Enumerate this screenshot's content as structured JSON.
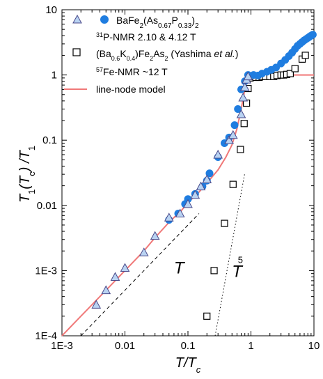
{
  "chart_data": {
    "type": "scatter",
    "xscale": "log",
    "yscale": "log",
    "xlim": [
      0.001,
      10
    ],
    "ylim": [
      0.0001,
      10
    ],
    "xticks": [
      "1E-3",
      "0.01",
      "0.1",
      "1",
      "10"
    ],
    "yticks": [
      "1E-4",
      "1E-3",
      "0.01",
      "0.1",
      "1",
      "10"
    ],
    "xlabel": {
      "main": "T/T",
      "sub": "c"
    },
    "ylabel": {
      "a": "T",
      "b": "1",
      "c": "(T",
      "d": "c",
      "e": ") /T",
      "f": "1"
    },
    "legend": [
      {
        "key": "p_nmr",
        "parts": [
          {
            "t": "BaFe"
          },
          {
            "t": "2",
            "s": "sub"
          },
          {
            "t": "(As"
          },
          {
            "t": "0.67",
            "s": "sub"
          },
          {
            "t": "P"
          },
          {
            "t": "0.33",
            "s": "sub"
          },
          {
            "t": ")"
          },
          {
            "t": "2",
            "s": "sub"
          }
        ]
      },
      {
        "key": "p_nmr_sub",
        "parts": [
          {
            "t": "31",
            "s": "sup"
          },
          {
            "t": "P-NMR 2.10 & 4.12 T"
          }
        ]
      },
      {
        "key": "k_doped",
        "parts": [
          {
            "t": "(Ba"
          },
          {
            "t": "0.6",
            "s": "sub"
          },
          {
            "t": "K"
          },
          {
            "t": "0.4",
            "s": "sub"
          },
          {
            "t": ")Fe"
          },
          {
            "t": "2",
            "s": "sub"
          },
          {
            "t": "As"
          },
          {
            "t": "2",
            "s": "sub"
          },
          {
            "t": " (Yashima "
          },
          {
            "t": "et al.",
            "s": "it"
          },
          {
            "t": ")"
          }
        ]
      },
      {
        "key": "fe_nmr",
        "parts": [
          {
            "t": "57",
            "s": "sup"
          },
          {
            "t": "Fe-NMR ~12 T"
          }
        ]
      },
      {
        "key": "model",
        "parts": [
          {
            "t": "line-node model"
          }
        ]
      }
    ],
    "annotations": [
      {
        "name": "t-linear-label",
        "text": "T",
        "x": 0.06,
        "y": 0.0009
      },
      {
        "name": "t5-label-base",
        "text": "T",
        "x": 0.5,
        "y": 0.0008
      },
      {
        "name": "t5-label-exp",
        "text": "5",
        "x": 0.62,
        "y": 0.0013
      }
    ],
    "colors": {
      "circles": "#1f7de0",
      "triangle_fill": "#b9d3f2",
      "triangle_stroke": "#4a4a8a",
      "squares": "#000000",
      "model": "#f07878"
    },
    "series": [
      {
        "name": "BaFe2(As0.67P0.33)2 31P-NMR (circles)",
        "marker": "circle",
        "points": [
          [
            0.05,
            0.006
          ],
          [
            0.07,
            0.0075
          ],
          [
            0.09,
            0.0105
          ],
          [
            0.1,
            0.0125
          ],
          [
            0.13,
            0.015
          ],
          [
            0.17,
            0.0195
          ],
          [
            0.2,
            0.024
          ],
          [
            0.22,
            0.031
          ],
          [
            0.3,
            0.055
          ],
          [
            0.38,
            0.09
          ],
          [
            0.45,
            0.11
          ],
          [
            0.55,
            0.17
          ],
          [
            0.62,
            0.3
          ],
          [
            0.7,
            0.6
          ],
          [
            0.8,
            0.8
          ],
          [
            0.9,
            1.0
          ],
          [
            1.1,
            1.0
          ],
          [
            1.3,
            0.98
          ],
          [
            1.5,
            1.05
          ],
          [
            1.8,
            1.12
          ],
          [
            2.1,
            1.2
          ],
          [
            2.5,
            1.3
          ],
          [
            3.0,
            1.5
          ],
          [
            3.5,
            1.7
          ],
          [
            4.0,
            1.95
          ],
          [
            4.5,
            2.2
          ],
          [
            5.0,
            2.5
          ],
          [
            5.5,
            2.8
          ],
          [
            6.0,
            3.0
          ],
          [
            6.5,
            3.2
          ],
          [
            7.0,
            3.4
          ],
          [
            7.5,
            3.55
          ],
          [
            8.0,
            3.7
          ],
          [
            8.5,
            3.85
          ],
          [
            9.0,
            4.0
          ],
          [
            9.6,
            4.15
          ]
        ]
      },
      {
        "name": "triangles",
        "marker": "triangle",
        "points": [
          [
            0.0035,
            0.0003
          ],
          [
            0.005,
            0.0005
          ],
          [
            0.007,
            0.0008
          ],
          [
            0.01,
            0.0011
          ],
          [
            0.02,
            0.0019
          ],
          [
            0.03,
            0.0034
          ],
          [
            0.05,
            0.0065
          ],
          [
            0.075,
            0.0075
          ],
          [
            0.1,
            0.0105
          ],
          [
            0.13,
            0.0145
          ],
          [
            0.16,
            0.0195
          ],
          [
            0.2,
            0.025
          ],
          [
            0.3,
            0.06
          ],
          [
            0.45,
            0.1
          ],
          [
            0.52,
            0.12
          ],
          [
            0.7,
            0.25
          ],
          [
            0.75,
            0.45
          ],
          [
            0.8,
            0.65
          ],
          [
            0.85,
            0.85
          ],
          [
            0.9,
            0.95
          ]
        ]
      },
      {
        "name": "(Ba0.6K0.4)Fe2As2 (Yashima et al.)",
        "marker": "square",
        "points": [
          [
            0.2,
            0.0002
          ],
          [
            0.26,
            0.001
          ],
          [
            0.38,
            0.0053
          ],
          [
            0.52,
            0.021
          ],
          [
            0.68,
            0.072
          ],
          [
            0.78,
            0.18
          ],
          [
            0.85,
            0.37
          ],
          [
            0.9,
            0.62
          ],
          [
            0.97,
            0.9
          ],
          [
            1.05,
            0.95
          ],
          [
            1.2,
            0.92
          ],
          [
            1.35,
            0.92
          ],
          [
            1.5,
            0.95
          ],
          [
            1.7,
            0.95
          ],
          [
            2.0,
            0.95
          ],
          [
            2.3,
            0.95
          ],
          [
            2.6,
            0.98
          ],
          [
            3.0,
            1.0
          ],
          [
            3.3,
            1.0
          ],
          [
            3.7,
            1.02
          ],
          [
            4.2,
            1.05
          ],
          [
            5.0,
            1.25
          ],
          [
            6.5,
            1.75
          ],
          [
            7.3,
            2.0
          ]
        ]
      },
      {
        "name": "line-node model",
        "marker": "line",
        "points": [
          [
            0.001,
            0.0001
          ],
          [
            0.002,
            0.0002
          ],
          [
            0.003,
            0.0003
          ],
          [
            0.005,
            0.0005
          ],
          [
            0.01,
            0.001
          ],
          [
            0.02,
            0.002
          ],
          [
            0.03,
            0.0032
          ],
          [
            0.05,
            0.0055
          ],
          [
            0.08,
            0.0085
          ],
          [
            0.1,
            0.011
          ],
          [
            0.15,
            0.016
          ],
          [
            0.2,
            0.022
          ],
          [
            0.3,
            0.035
          ],
          [
            0.4,
            0.055
          ],
          [
            0.5,
            0.085
          ],
          [
            0.6,
            0.15
          ],
          [
            0.7,
            0.3
          ],
          [
            0.8,
            0.6
          ],
          [
            0.85,
            0.8
          ],
          [
            0.9,
            0.93
          ],
          [
            1.0,
            1.0
          ],
          [
            10,
            1.0
          ]
        ]
      },
      {
        "name": "T reference",
        "marker": "dashed",
        "points": [
          [
            0.002,
            0.0001
          ],
          [
            0.15,
            0.0075
          ]
        ]
      },
      {
        "name": "T^5 reference",
        "marker": "dotted",
        "points": [
          [
            0.27,
            0.0001
          ],
          [
            0.8,
            0.0317
          ]
        ]
      }
    ]
  }
}
